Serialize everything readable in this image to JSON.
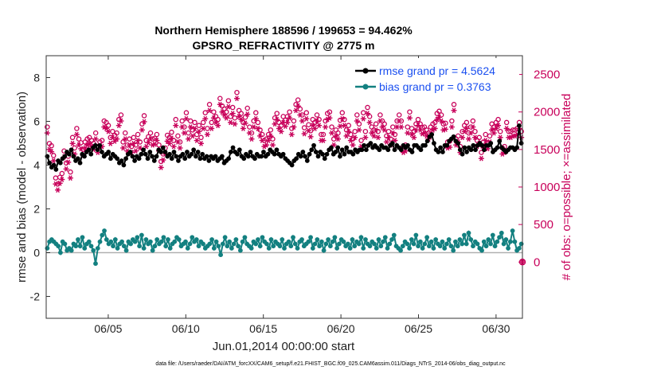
{
  "chart_data": {
    "type": "line",
    "title": "Northern Hemisphere 188596 / 199653 = 94.462%",
    "subtitle": "GPSRO_REFRACTIVITY @ 2775 m",
    "xlabel": "Jun.01,2014 00:00:00 start",
    "ylabel": "rmse and bias (model - observation)",
    "ylabel_right": "# of obs: o=possible; ×=assimilated",
    "footer": "data file: /Users/raeder/DAI/ATM_forcXX/CAM6_setup/f.e21.FHIST_BGC.f09_025.CAM6assim.011/Diags_NTrS_2014-06/obs_diag_output.nc",
    "xlim": [
      1,
      31.7
    ],
    "ylim": [
      -3,
      9
    ],
    "ylim_right": [
      -750,
      2750
    ],
    "xticks": [
      5,
      10,
      15,
      20,
      25,
      30
    ],
    "xtick_labels": [
      "06/05",
      "06/10",
      "06/15",
      "06/20",
      "06/25",
      "06/30"
    ],
    "yticks": [
      -2,
      0,
      2,
      4,
      6,
      8
    ],
    "yticks_right": [
      0,
      500,
      1000,
      1500,
      2000,
      2500
    ],
    "legend": [
      {
        "label": "rmse grand pr = 4.5624",
        "color": "#000000"
      },
      {
        "label": "bias grand pr = 0.3763",
        "color": "#138080"
      }
    ],
    "rmse_color": "#000000",
    "bias_color": "#138080",
    "obs_color": "#c8005a",
    "zero_line_color": "#b0b0b0",
    "series": [
      {
        "name": "rmse",
        "values": [
          4.4,
          4.1,
          3.9,
          4.0,
          3.8,
          4.2,
          4.1,
          4.3,
          4.4,
          4.6,
          4.5,
          4.7,
          4.4,
          4.2,
          4.3,
          4.1,
          4.5,
          4.4,
          4.6,
          4.7,
          4.5,
          4.8,
          4.9,
          4.7,
          4.9,
          4.6,
          4.4,
          4.5,
          4.6,
          4.3,
          4.5,
          4.4,
          4.3,
          4.1,
          4.2,
          4.0,
          4.3,
          4.5,
          4.6,
          4.4,
          4.2,
          4.4,
          4.3,
          4.5,
          4.7,
          4.5,
          4.3,
          4.6,
          4.4,
          4.2,
          4.4,
          4.7,
          4.6,
          4.8,
          4.6,
          4.4,
          4.5,
          4.3,
          4.6,
          4.4,
          4.2,
          4.4,
          4.5,
          4.3,
          4.6,
          4.4,
          4.5,
          4.7,
          4.4,
          4.6,
          4.3,
          4.5,
          4.3,
          4.4,
          4.2,
          4.4,
          4.3,
          4.4,
          4.2,
          4.3,
          4.4,
          4.1,
          4.2,
          4.3,
          4.6,
          4.8,
          4.6,
          4.5,
          4.7,
          4.4,
          4.3,
          4.5,
          4.4,
          4.6,
          4.4,
          4.3,
          4.5,
          4.4,
          4.4,
          4.6,
          4.4,
          4.5,
          4.7,
          4.6,
          4.5,
          4.7,
          4.5,
          4.4,
          4.5,
          4.3,
          4.2,
          4.1,
          4.0,
          4.2,
          4.3,
          4.5,
          4.4,
          4.6,
          4.4,
          4.2,
          4.5,
          4.7,
          4.9,
          4.6,
          4.4,
          4.6,
          4.5,
          4.3,
          4.5,
          4.7,
          4.8,
          4.5,
          4.6,
          4.8,
          4.4,
          4.7,
          4.5,
          4.8,
          4.6,
          4.6,
          4.5,
          4.7,
          4.6,
          4.7,
          4.7,
          4.9,
          4.7,
          4.9,
          5.0,
          4.8,
          4.9,
          4.8,
          4.7,
          4.9,
          4.8,
          4.8,
          4.7,
          4.9,
          5.0,
          4.7,
          4.9,
          4.8,
          4.7,
          4.9,
          4.8,
          4.9,
          4.7,
          4.6,
          4.9,
          4.9,
          4.8,
          4.7,
          4.9,
          4.9,
          5.1,
          5.3,
          5.4,
          5.0,
          4.7,
          4.6,
          4.8,
          4.6,
          4.9,
          4.9,
          5.1,
          5.2,
          5.3,
          5.1,
          5.0,
          4.7,
          4.5,
          4.8,
          4.6,
          4.8,
          4.7,
          4.9,
          4.7,
          4.9,
          5.0,
          4.9,
          4.7,
          4.9,
          4.9,
          5.0,
          4.6,
          4.7,
          4.8,
          5.1,
          4.8,
          4.7,
          4.6,
          4.7,
          4.8,
          4.8,
          4.7,
          4.8,
          5.8,
          5.0
        ]
      },
      {
        "name": "bias",
        "values": [
          0.2,
          0.5,
          0.6,
          0.5,
          0.4,
          0.3,
          0.0,
          0.5,
          0.4,
          0.1,
          0.2,
          0.1,
          0.4,
          0.3,
          0.6,
          0.3,
          0.7,
          0.2,
          0.4,
          0.5,
          0.3,
          0.1,
          -0.5,
          0.2,
          0.5,
          0.8,
          1.0,
          0.6,
          0.4,
          0.5,
          0.3,
          0.6,
          0.2,
          0.4,
          0.5,
          0.3,
          0.1,
          0.5,
          0.4,
          0.6,
          0.5,
          0.7,
          0.3,
          0.8,
          0.2,
          0.6,
          0.4,
          0.5,
          0.1,
          0.3,
          0.6,
          0.4,
          0.5,
          0.7,
          0.3,
          0.6,
          0.2,
          0.4,
          0.5,
          0.7,
          0.6,
          0.3,
          0.4,
          0.5,
          0.2,
          0.4,
          0.7,
          0.5,
          0.6,
          0.3,
          0.5,
          0.4,
          0.2,
          0.3,
          0.4,
          0.6,
          0.2,
          0.5,
          0.3,
          -0.1,
          0.4,
          0.7,
          0.3,
          0.5,
          0.2,
          0.4,
          0.6,
          0.3,
          0.1,
          0.5,
          0.7,
          0.4,
          0.3,
          0.2,
          0.5,
          0.4,
          0.6,
          0.3,
          0.7,
          0.5,
          0.4,
          0.2,
          0.6,
          0.3,
          0.5,
          0.4,
          0.3,
          0.6,
          0.2,
          0.4,
          0.5,
          0.3,
          0.7,
          0.4,
          0.2,
          0.5,
          0.6,
          0.3,
          0.4,
          0.5,
          0.7,
          0.2,
          0.4,
          0.6,
          0.3,
          0.5,
          0.1,
          0.4,
          0.6,
          0.3,
          0.5,
          0.7,
          0.2,
          0.4,
          0.6,
          0.5,
          0.3,
          0.4,
          0.2,
          0.6,
          0.3,
          0.5,
          0.4,
          0.7,
          0.2,
          0.6,
          0.4,
          0.3,
          0.5,
          0.4,
          0.2,
          0.6,
          0.3,
          0.5,
          0.7,
          0.2,
          0.4,
          0.6,
          0.8,
          0.3,
          0.2,
          0.1,
          0.3,
          0.5,
          0.4,
          0.2,
          0.6,
          0.4,
          0.8,
          0.3,
          0.5,
          0.2,
          0.4,
          0.7,
          0.3,
          0.5,
          0.2,
          0.6,
          0.4,
          0.3,
          0.5,
          0.2,
          0.4,
          0.6,
          0.3,
          0.1,
          0.5,
          0.3,
          0.6,
          0.4,
          0.8,
          0.4,
          0.9,
          0.6,
          0.3,
          0.5,
          0.4,
          0.2,
          0.1,
          0.5,
          0.3,
          0.6,
          0.4,
          0.8,
          0.3,
          0.5,
          0.7,
          0.9,
          0.4,
          0.6,
          0.2,
          0.5,
          1.0,
          0.5,
          0.1,
          0.2,
          0.4
        ]
      },
      {
        "name": "obs_possible",
        "axis": "right",
        "values": [
          1800,
          1580,
          1550,
          1420,
          1120,
          1040,
          1130,
          1180,
          1480,
          1320,
          1410,
          1200,
          1660,
          1520,
          1780,
          1640,
          1590,
          1500,
          1600,
          1640,
          1660,
          1620,
          1580,
          1720,
          1540,
          1600,
          1620,
          1880,
          1860,
          1820,
          1660,
          1740,
          1690,
          1720,
          1900,
          1960,
          1600,
          1720,
          1560,
          1640,
          1540,
          1660,
          1560,
          1700,
          1600,
          1840,
          1950,
          1620,
          1670,
          1720,
          1640,
          1650,
          1700,
          1560,
          1340,
          1440,
          1520,
          1690,
          1660,
          1730,
          1620,
          1900,
          1680,
          1600,
          1880,
          1800,
          1990,
          1720,
          1880,
          1760,
          1860,
          1700,
          1820,
          1660,
          1860,
          1990,
          1780,
          2100,
          1860,
          2000,
          1940,
          1900,
          2180,
          2080,
          2040,
          2000,
          2150,
          1940,
          2060,
          1920,
          2260,
          2020,
          1980,
          1860,
          1930,
          2050,
          1800,
          1720,
          1880,
          1990,
          1860,
          1760,
          1700,
          1620,
          1640,
          1700,
          1760,
          1640,
          1920,
          1980,
          1860,
          1820,
          1940,
          1890,
          1940,
          2000,
          1780,
          1880,
          2100,
          2160,
          2040,
          1960,
          1790,
          1990,
          1830,
          1750,
          1900,
          1860,
          1960,
          1900,
          1700,
          1700,
          1880,
          1980,
          2000,
          1800,
          1640,
          1760,
          1720,
          1890,
          1990,
          1900,
          1760,
          1820,
          1700,
          1640,
          1740,
          1960,
          1840,
          1620,
          1990,
          1740,
          2060,
          1940,
          1800,
          1760,
          1840,
          1740,
          1960,
          1880,
          1840,
          1680,
          1740,
          1640,
          1800,
          1700,
          1880,
          1960,
          1880,
          1540,
          1560,
          1800,
          2000,
          1780,
          1740,
          1840,
          1900,
          1840,
          1790,
          1800,
          1760,
          1720,
          1800,
          1840,
          1860,
          1980,
          2010,
          1960,
          1840,
          1850,
          1600,
          1610,
          1880,
          2100,
          1640,
          1680,
          1540,
          1740,
          1820,
          1860,
          1720,
          1800,
          1880,
          1740,
          1620,
          1660,
          1460,
          1600,
          1700,
          1590,
          1680,
          1840,
          1800,
          1860,
          1900,
          1740,
          1520,
          1540,
          1860,
          1740,
          1740,
          1760,
          1760,
          1780,
          1860,
          1740
        ]
      },
      {
        "name": "obs_assimilated",
        "axis": "right",
        "values": [
          1720,
          1500,
          1470,
          1350,
          1040,
          960,
          1050,
          1100,
          1400,
          1240,
          1330,
          1120,
          1580,
          1440,
          1700,
          1560,
          1510,
          1420,
          1520,
          1560,
          1580,
          1540,
          1500,
          1640,
          1460,
          1520,
          1540,
          1800,
          1780,
          1740,
          1580,
          1660,
          1610,
          1640,
          1820,
          1880,
          1520,
          1640,
          1480,
          1560,
          1460,
          1580,
          1480,
          1620,
          1520,
          1760,
          1870,
          1540,
          1590,
          1640,
          1560,
          1570,
          1620,
          1480,
          1260,
          1360,
          1440,
          1610,
          1580,
          1650,
          1540,
          1820,
          1600,
          1520,
          1800,
          1720,
          1910,
          1640,
          1800,
          1680,
          1780,
          1620,
          1740,
          1580,
          1780,
          1910,
          1700,
          2020,
          1780,
          1920,
          1860,
          1820,
          2100,
          2000,
          1960,
          1920,
          2070,
          1860,
          1980,
          1840,
          2180,
          1940,
          1900,
          1780,
          1850,
          1970,
          1720,
          1640,
          1800,
          1910,
          1780,
          1680,
          1620,
          1540,
          1560,
          1620,
          1680,
          1560,
          1840,
          1900,
          1780,
          1740,
          1860,
          1810,
          1860,
          1920,
          1700,
          1800,
          2020,
          2080,
          1960,
          1880,
          1710,
          1910,
          1750,
          1670,
          1820,
          1780,
          1880,
          1820,
          1620,
          1620,
          1800,
          1900,
          1920,
          1720,
          1560,
          1680,
          1640,
          1810,
          1910,
          1820,
          1680,
          1740,
          1620,
          1560,
          1660,
          1880,
          1760,
          1540,
          1910,
          1660,
          1980,
          1860,
          1720,
          1680,
          1760,
          1660,
          1880,
          1800,
          1760,
          1600,
          1660,
          1560,
          1720,
          1620,
          1800,
          1880,
          1800,
          1460,
          1480,
          1720,
          1920,
          1700,
          1660,
          1760,
          1820,
          1760,
          1710,
          1720,
          1680,
          1640,
          1720,
          1760,
          1780,
          1900,
          1930,
          1880,
          1760,
          1770,
          1520,
          1530,
          1800,
          2020,
          1560,
          1600,
          1460,
          1660,
          1740,
          1780,
          1640,
          1720,
          1800,
          1660,
          1540,
          1580,
          1380,
          1520,
          1620,
          1510,
          1600,
          1760,
          1720,
          1780,
          1820,
          1660,
          1440,
          1460,
          1780,
          1660,
          1660,
          1680,
          1680,
          1700,
          1780,
          1660
        ]
      }
    ]
  }
}
